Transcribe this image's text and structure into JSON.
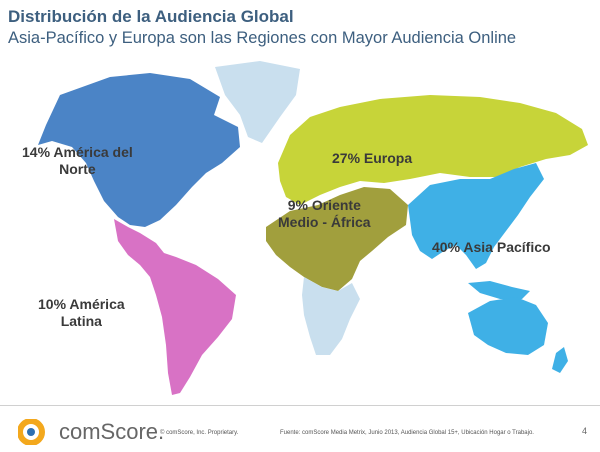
{
  "header": {
    "title": "Distribución de la Audiencia Global",
    "subtitle": "Asia-Pacífico y Europa son las Regiones con Mayor Audiencia Online"
  },
  "map": {
    "regions": [
      {
        "key": "north_america",
        "label_line1": "14% América del",
        "label_line2": "Norte",
        "color": "#4b84c6"
      },
      {
        "key": "latin_america",
        "label_line1": "10% América",
        "label_line2": "Latina",
        "color": "#d872c5"
      },
      {
        "key": "europe",
        "label_line1": "27% Europa",
        "label_line2": "",
        "color": "#c7d439"
      },
      {
        "key": "mea",
        "label_line1": "9% Oriente",
        "label_line2": "Medio - África",
        "color": "#a19f3d"
      },
      {
        "key": "asia_pacific",
        "label_line1": "40% Asia Pacífico",
        "label_line2": "",
        "color": "#3fb0e6"
      }
    ],
    "other_land_color": "#c9dfee"
  },
  "footer": {
    "brand": "comScore.",
    "copyright": "© comScore, Inc.   Proprietary.",
    "source": "Fuente: comScore Media Metrix, Junio 2013, Audiencia Global 15+, Ubicación Hogar o Trabajo.",
    "page": "4"
  }
}
